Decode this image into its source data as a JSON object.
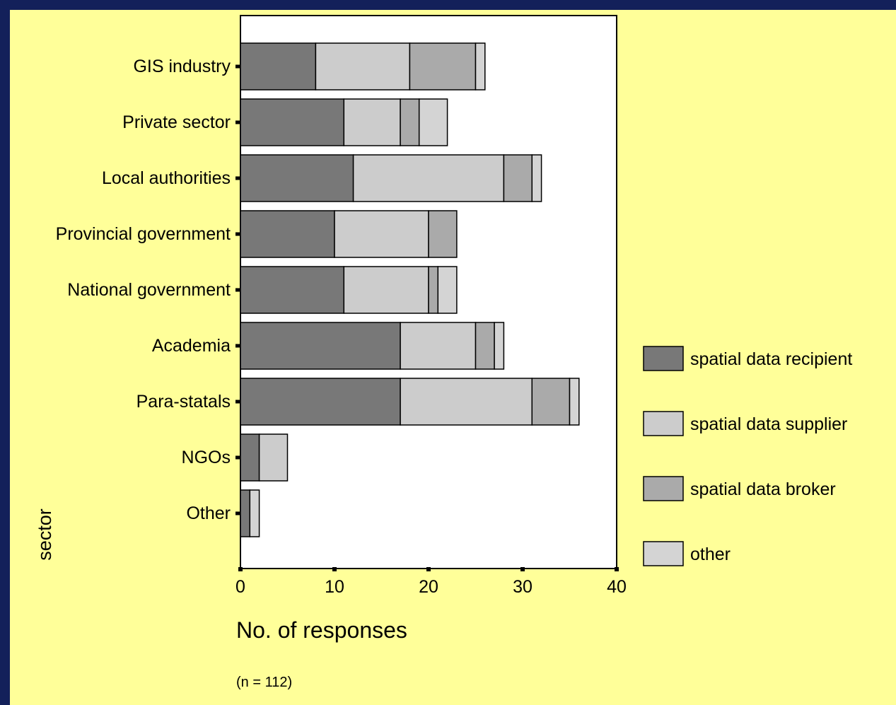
{
  "chart_data": {
    "type": "bar",
    "orientation": "horizontal",
    "stacked": true,
    "categories": [
      "GIS industry",
      "Private sector",
      "Local authorities",
      "Provincial government",
      "National government",
      "Academia",
      "Para-statals",
      "NGOs",
      "Other"
    ],
    "series": [
      {
        "name": "spatial data recipient",
        "color": "#787878",
        "values": [
          8,
          11,
          12,
          10,
          11,
          17,
          17,
          2,
          1
        ]
      },
      {
        "name": "spatial data supplier",
        "color": "#cccccc",
        "values": [
          10,
          6,
          16,
          10,
          9,
          8,
          14,
          3,
          0
        ]
      },
      {
        "name": "spatial data broker",
        "color": "#aaaaaa",
        "values": [
          7,
          2,
          3,
          3,
          1,
          2,
          4,
          0,
          0
        ]
      },
      {
        "name": "other",
        "color": "#d4d4d4",
        "values": [
          1,
          3,
          1,
          0,
          2,
          1,
          1,
          0,
          1
        ]
      }
    ],
    "xlabel": "No. of responses",
    "ylabel": "sector",
    "xlim": [
      0,
      40
    ],
    "xticks": [
      "0",
      "10",
      "20",
      "30",
      "40"
    ],
    "legend_position": "right",
    "note": "(n = 112)",
    "grid": false
  }
}
